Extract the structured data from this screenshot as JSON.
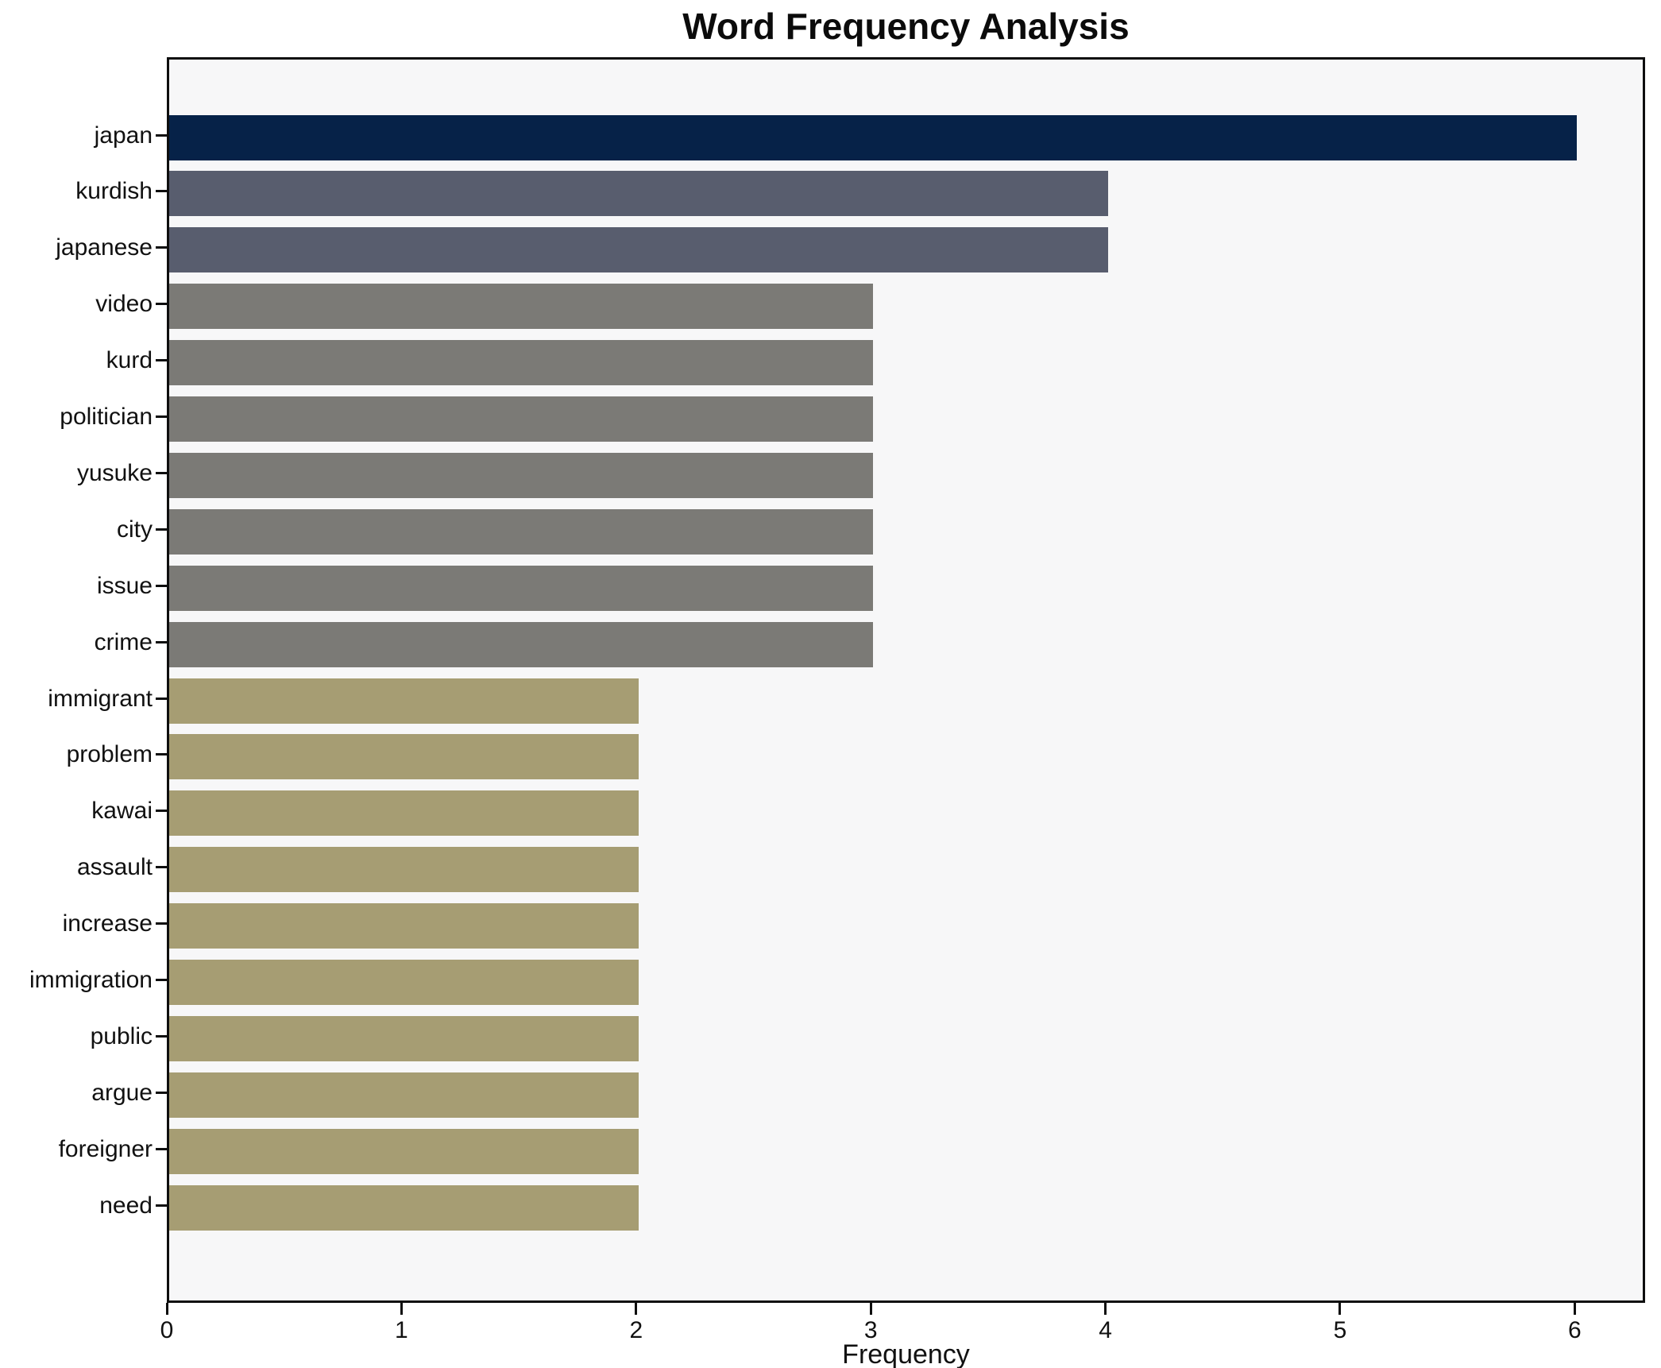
{
  "title": "Word Frequency Analysis",
  "chart_data": {
    "type": "bar",
    "orientation": "horizontal",
    "title": "Word Frequency Analysis",
    "xlabel": "Frequency",
    "ylabel": "",
    "categories": [
      "japan",
      "kurdish",
      "japanese",
      "video",
      "kurd",
      "politician",
      "yusuke",
      "city",
      "issue",
      "crime",
      "immigrant",
      "problem",
      "kawai",
      "assault",
      "increase",
      "immigration",
      "public",
      "argue",
      "foreigner",
      "need"
    ],
    "values": [
      6,
      4,
      4,
      3,
      3,
      3,
      3,
      3,
      3,
      3,
      2,
      2,
      2,
      2,
      2,
      2,
      2,
      2,
      2,
      2
    ],
    "bar_colors": [
      "#062248",
      "#585d6e",
      "#585d6e",
      "#7b7a76",
      "#7b7a76",
      "#7b7a76",
      "#7b7a76",
      "#7b7a76",
      "#7b7a76",
      "#7b7a76",
      "#a69d73",
      "#a69d73",
      "#a69d73",
      "#a69d73",
      "#a69d73",
      "#a69d73",
      "#a69d73",
      "#a69d73",
      "#a69d73",
      "#a69d73"
    ],
    "value_color_map": {
      "6": "#062248",
      "4": "#585d6e",
      "3": "#7b7a76",
      "2": "#a69d73"
    },
    "xlim": [
      0,
      6.3
    ],
    "xticks": [
      0,
      1,
      2,
      3,
      4,
      5,
      6
    ],
    "grid": false,
    "legend": null,
    "plot_background": "#f7f7f8",
    "figure_background": "#ffffff",
    "spine_color": "#0e0e0e"
  }
}
